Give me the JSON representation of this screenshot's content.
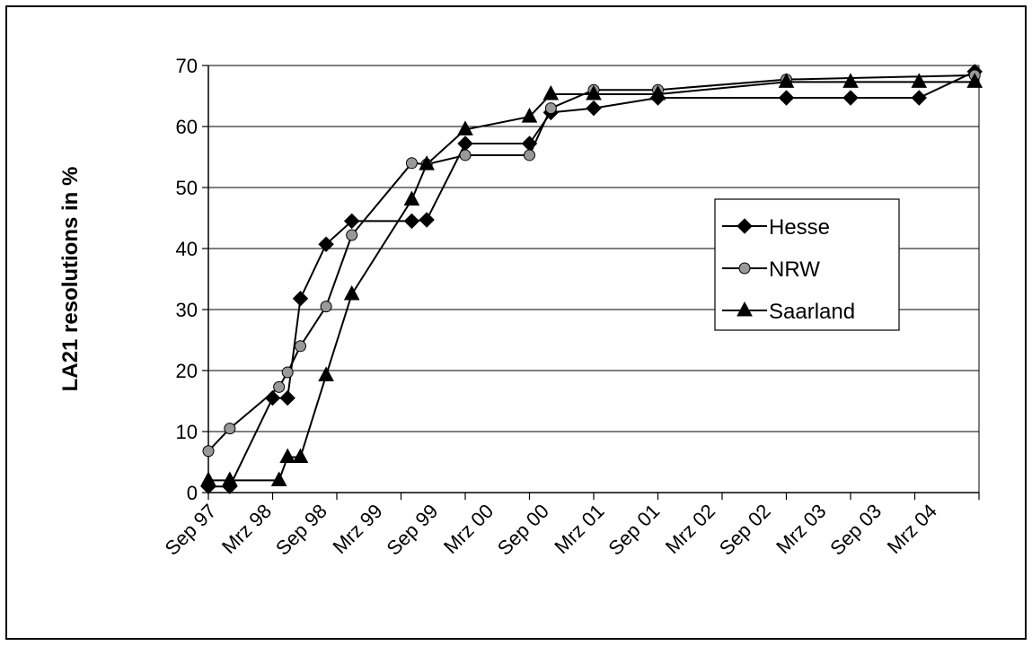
{
  "chart_data": {
    "type": "line",
    "title": "",
    "xlabel": "",
    "ylabel": "LA21 resolutions in %",
    "ylim": [
      0,
      70
    ],
    "yticks": [
      0,
      10,
      20,
      30,
      40,
      50,
      60,
      70
    ],
    "grid": true,
    "legend_position": "right",
    "x_tick_labels": [
      "Sep 97",
      "Mrz 98",
      "Sep 98",
      "Mrz 99",
      "Sep 99",
      "Mrz 00",
      "Sep 00",
      "Mrz 01",
      "Sep 01",
      "Mrz 02",
      "Sep 02",
      "Mrz 03",
      "Sep 03",
      "Mrz 04"
    ],
    "x_unit": "months since Sep 97",
    "series": [
      {
        "name": "Hesse",
        "marker": "diamond",
        "marker_color": "#000000",
        "x": [
          0,
          1,
          3,
          3.7,
          4.3,
          5.5,
          6.7,
          9.5,
          10.2,
          12,
          15,
          16,
          18,
          21,
          27,
          30,
          33.2,
          35.8
        ],
        "y": [
          1,
          1,
          15.5,
          15.5,
          31.8,
          40.7,
          44.5,
          44.5,
          44.7,
          57.2,
          57.2,
          62.3,
          63,
          64.7,
          64.7,
          64.7,
          64.7,
          69
        ]
      },
      {
        "name": "NRW",
        "marker": "circle",
        "marker_color": "#999999",
        "x": [
          0,
          1,
          3.3,
          3.7,
          4.3,
          5.5,
          6.7,
          9.5,
          10.2,
          12,
          15,
          16,
          18,
          21,
          27,
          35.8
        ],
        "y": [
          6.8,
          10.5,
          17.3,
          19.7,
          24,
          30.5,
          42.2,
          54,
          53.8,
          55.3,
          55.3,
          63,
          66,
          66,
          67.7,
          68.4
        ]
      },
      {
        "name": "Saarland",
        "marker": "triangle",
        "marker_color": "#000000",
        "x": [
          0,
          1,
          3.3,
          3.7,
          4.3,
          5.5,
          6.7,
          9.5,
          10.2,
          12,
          15,
          16,
          18,
          21,
          27,
          30,
          33.2,
          35.8
        ],
        "y": [
          2,
          2,
          2,
          5.8,
          5.8,
          19.2,
          32.5,
          48,
          53.8,
          59.5,
          61.6,
          65.3,
          65.3,
          65.3,
          67.3,
          67.3,
          67.3,
          67.3
        ]
      }
    ]
  }
}
